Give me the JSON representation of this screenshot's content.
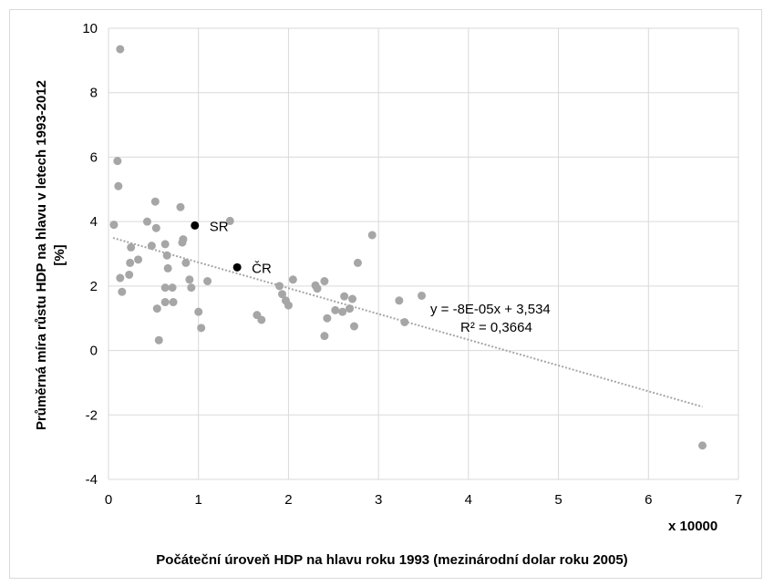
{
  "chart_data": {
    "type": "scatter",
    "title": "",
    "xlabel": "Počáteční úroveň HDP na hlavu roku 1993 (mezinárodní dolar roku 2005)",
    "xunit": "x 10000",
    "ylabel_line1": "Průměrná míra růstu HDP na hlavu v letech 1993-2012",
    "ylabel_line2": "[%]",
    "xlim": [
      0,
      7
    ],
    "ylim": [
      -4,
      10
    ],
    "xticks": [
      "0",
      "1",
      "2",
      "3",
      "4",
      "5",
      "6",
      "7"
    ],
    "yticks": [
      "-4",
      "-2",
      "0",
      "2",
      "4",
      "6",
      "8",
      "10"
    ],
    "grid": true,
    "colors": {
      "points": "#a6a6a6",
      "highlight": "#000000",
      "trendline": "#a6a6a6",
      "grid": "#d9d9d9"
    },
    "points": [
      [
        0.13,
        9.35
      ],
      [
        0.1,
        5.88
      ],
      [
        0.11,
        5.1
      ],
      [
        0.06,
        3.9
      ],
      [
        0.43,
        4.0
      ],
      [
        0.52,
        4.62
      ],
      [
        0.8,
        4.45
      ],
      [
        0.53,
        3.8
      ],
      [
        0.48,
        3.25
      ],
      [
        0.25,
        3.2
      ],
      [
        0.63,
        3.3
      ],
      [
        0.83,
        3.45
      ],
      [
        0.82,
        3.35
      ],
      [
        0.33,
        2.82
      ],
      [
        0.24,
        2.72
      ],
      [
        0.65,
        2.95
      ],
      [
        0.86,
        2.72
      ],
      [
        0.66,
        2.55
      ],
      [
        0.23,
        2.35
      ],
      [
        0.13,
        2.25
      ],
      [
        0.15,
        1.82
      ],
      [
        0.9,
        2.2
      ],
      [
        1.1,
        2.15
      ],
      [
        0.63,
        1.95
      ],
      [
        0.71,
        1.95
      ],
      [
        0.92,
        1.95
      ],
      [
        0.63,
        1.5
      ],
      [
        0.72,
        1.5
      ],
      [
        0.54,
        1.3
      ],
      [
        1.0,
        1.2
      ],
      [
        1.03,
        0.7
      ],
      [
        0.56,
        0.32
      ],
      [
        1.35,
        4.02
      ],
      [
        1.65,
        1.1
      ],
      [
        1.7,
        0.95
      ],
      [
        1.9,
        2.0
      ],
      [
        1.93,
        1.75
      ],
      [
        1.97,
        1.55
      ],
      [
        2.0,
        1.4
      ],
      [
        2.05,
        2.2
      ],
      [
        2.3,
        2.02
      ],
      [
        2.32,
        1.92
      ],
      [
        2.4,
        2.15
      ],
      [
        2.43,
        1.0
      ],
      [
        2.4,
        0.45
      ],
      [
        2.52,
        1.25
      ],
      [
        2.6,
        1.2
      ],
      [
        2.62,
        1.68
      ],
      [
        2.68,
        1.3
      ],
      [
        2.71,
        1.6
      ],
      [
        2.73,
        0.75
      ],
      [
        2.77,
        2.72
      ],
      [
        2.93,
        3.58
      ],
      [
        3.23,
        1.55
      ],
      [
        3.29,
        0.88
      ],
      [
        3.48,
        1.7
      ],
      [
        6.6,
        -2.95
      ]
    ],
    "highlighted": [
      {
        "label": "SR",
        "x": 0.96,
        "y": 3.88
      },
      {
        "label": "ČR",
        "x": 1.43,
        "y": 2.58
      }
    ],
    "trendline": {
      "equation": "y = -8E-05x + 3,534",
      "r_squared": "R² = 0,3664",
      "slope_per_unit": -0.8,
      "intercept": 3.534,
      "x_range": [
        0.05,
        6.6
      ]
    }
  }
}
